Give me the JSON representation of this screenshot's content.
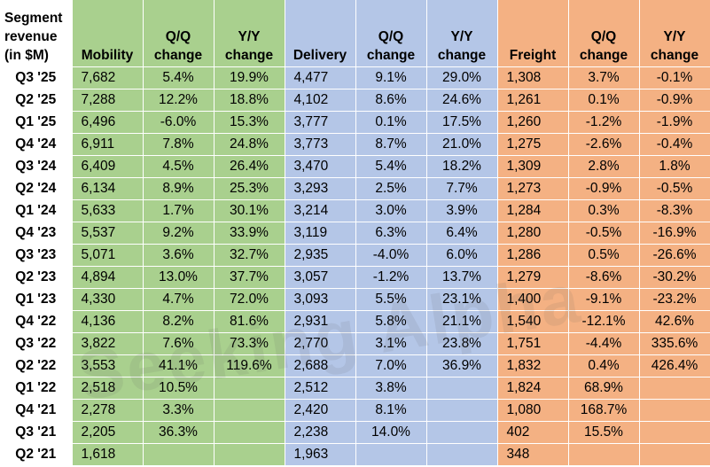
{
  "header": {
    "row_label": "Segment revenue (in $M)",
    "columns": [
      "Mobility",
      "Q/Q change",
      "Y/Y change",
      "Delivery",
      "Q/Q change",
      "Y/Y change",
      "Freight",
      "Q/Q change",
      "Y/Y change"
    ]
  },
  "colors": {
    "mobility": "#a9d08e",
    "delivery": "#b4c6e7",
    "freight": "#f4b183"
  },
  "watermark": "Seeking Alpha",
  "rows": [
    [
      "Q3 '25",
      "7,682",
      "5.4%",
      "19.9%",
      "4,477",
      "9.1%",
      "29.0%",
      "1,308",
      "3.7%",
      "-0.1%"
    ],
    [
      "Q2 '25",
      "7,288",
      "12.2%",
      "18.8%",
      "4,102",
      "8.6%",
      "24.6%",
      "1,261",
      "0.1%",
      "-0.9%"
    ],
    [
      "Q1 '25",
      "6,496",
      "-6.0%",
      "15.3%",
      "3,777",
      "0.1%",
      "17.5%",
      "1,260",
      "-1.2%",
      "-1.9%"
    ],
    [
      "Q4 '24",
      "6,911",
      "7.8%",
      "24.8%",
      "3,773",
      "8.7%",
      "21.0%",
      "1,275",
      "-2.6%",
      "-0.4%"
    ],
    [
      "Q3 '24",
      "6,409",
      "4.5%",
      "26.4%",
      "3,470",
      "5.4%",
      "18.2%",
      "1,309",
      "2.8%",
      "1.8%"
    ],
    [
      "Q2 '24",
      "6,134",
      "8.9%",
      "25.3%",
      "3,293",
      "2.5%",
      "7.7%",
      "1,273",
      "-0.9%",
      "-0.5%"
    ],
    [
      "Q1 '24",
      "5,633",
      "1.7%",
      "30.1%",
      "3,214",
      "3.0%",
      "3.9%",
      "1,284",
      "0.3%",
      "-8.3%"
    ],
    [
      "Q4 '23",
      "5,537",
      "9.2%",
      "33.9%",
      "3,119",
      "6.3%",
      "6.4%",
      "1,280",
      "-0.5%",
      "-16.9%"
    ],
    [
      "Q3 '23",
      "5,071",
      "3.6%",
      "32.7%",
      "2,935",
      "-4.0%",
      "6.0%",
      "1,286",
      "0.5%",
      "-26.6%"
    ],
    [
      "Q2 '23",
      "4,894",
      "13.0%",
      "37.7%",
      "3,057",
      "-1.2%",
      "13.7%",
      "1,279",
      "-8.6%",
      "-30.2%"
    ],
    [
      "Q1 '23",
      "4,330",
      "4.7%",
      "72.0%",
      "3,093",
      "5.5%",
      "23.1%",
      "1,400",
      "-9.1%",
      "-23.2%"
    ],
    [
      "Q4 '22",
      "4,136",
      "8.2%",
      "81.6%",
      "2,931",
      "5.8%",
      "21.1%",
      "1,540",
      "-12.1%",
      "42.6%"
    ],
    [
      "Q3 '22",
      "3,822",
      "7.6%",
      "73.3%",
      "2,770",
      "3.1%",
      "23.8%",
      "1,751",
      "-4.4%",
      "335.6%"
    ],
    [
      "Q2 '22",
      "3,553",
      "41.1%",
      "119.6%",
      "2,688",
      "7.0%",
      "36.9%",
      "1,832",
      "0.4%",
      "426.4%"
    ],
    [
      "Q1 '22",
      "2,518",
      "10.5%",
      "",
      "2,512",
      "3.8%",
      "",
      "1,824",
      "68.9%",
      ""
    ],
    [
      "Q4 '21",
      "2,278",
      "3.3%",
      "",
      "2,420",
      "8.1%",
      "",
      "1,080",
      "168.7%",
      ""
    ],
    [
      "Q3 '21",
      "2,205",
      "36.3%",
      "",
      "2,238",
      "14.0%",
      "",
      "402",
      "15.5%",
      ""
    ],
    [
      "Q2 '21",
      "1,618",
      "",
      "",
      "1,963",
      "",
      "",
      "348",
      "",
      ""
    ]
  ]
}
